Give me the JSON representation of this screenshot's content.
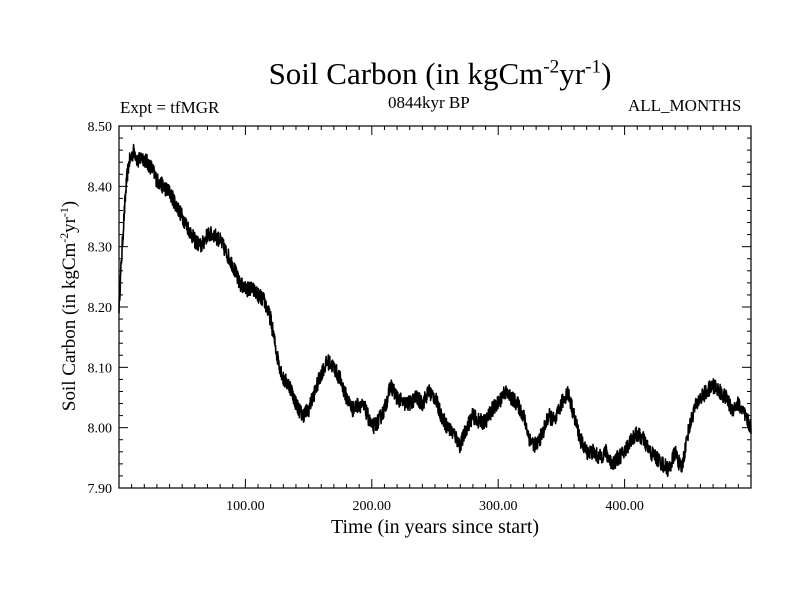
{
  "chart_data": {
    "type": "line",
    "title": {
      "base": "Soil Carbon (in kgCm",
      "sup1": "-2",
      "mid": "yr",
      "sup2": "-1",
      "end": ")"
    },
    "subtitle_left": "Expt = tfMGR",
    "subtitle_center": "0844kyr BP",
    "subtitle_right": "ALL_MONTHS",
    "xlabel": "Time (in years since start)",
    "ylabel": {
      "base": "Soil Carbon (in kgCm",
      "sup1": "-2",
      "mid": "yr",
      "sup2": "-1",
      "end": ")"
    },
    "xlim": [
      0,
      500
    ],
    "ylim": [
      7.9,
      8.5
    ],
    "x_ticks": [
      100,
      200,
      300,
      400
    ],
    "x_tick_labels": [
      "100.00",
      "200.00",
      "300.00",
      "400.00"
    ],
    "y_ticks": [
      7.9,
      8.0,
      8.1,
      8.2,
      8.3,
      8.4,
      8.5
    ],
    "y_tick_labels": [
      "7.90",
      "8.00",
      "8.10",
      "8.20",
      "8.30",
      "8.40",
      "8.50"
    ],
    "line_color": "#000000",
    "series": [
      {
        "name": "Soil Carbon",
        "x": [
          0,
          2,
          4,
          6,
          8,
          10,
          12,
          15,
          18,
          22,
          26,
          30,
          35,
          40,
          45,
          50,
          55,
          60,
          65,
          70,
          75,
          80,
          85,
          90,
          95,
          100,
          105,
          110,
          115,
          120,
          125,
          130,
          135,
          140,
          145,
          150,
          155,
          160,
          165,
          170,
          175,
          180,
          185,
          190,
          195,
          200,
          205,
          210,
          215,
          220,
          225,
          230,
          235,
          240,
          245,
          250,
          255,
          260,
          265,
          270,
          275,
          280,
          285,
          290,
          295,
          300,
          305,
          310,
          315,
          320,
          325,
          330,
          335,
          340,
          345,
          350,
          355,
          360,
          365,
          370,
          375,
          380,
          385,
          390,
          395,
          400,
          405,
          410,
          415,
          420,
          425,
          430,
          435,
          440,
          445,
          450,
          455,
          460,
          465,
          470,
          475,
          480,
          485,
          490,
          495,
          500
        ],
        "y": [
          8.2,
          8.28,
          8.35,
          8.41,
          8.44,
          8.45,
          8.46,
          8.44,
          8.45,
          8.44,
          8.43,
          8.41,
          8.4,
          8.39,
          8.37,
          8.35,
          8.33,
          8.31,
          8.3,
          8.32,
          8.32,
          8.31,
          8.29,
          8.27,
          8.24,
          8.23,
          8.23,
          8.22,
          8.21,
          8.18,
          8.12,
          8.08,
          8.07,
          8.04,
          8.02,
          8.03,
          8.06,
          8.09,
          8.11,
          8.1,
          8.08,
          8.05,
          8.03,
          8.04,
          8.03,
          8.0,
          8.01,
          8.03,
          8.07,
          8.05,
          8.04,
          8.04,
          8.05,
          8.04,
          8.06,
          8.05,
          8.02,
          8.0,
          7.99,
          7.97,
          8.0,
          8.02,
          8.01,
          8.01,
          8.03,
          8.04,
          8.06,
          8.05,
          8.04,
          8.02,
          7.98,
          7.97,
          7.99,
          8.02,
          8.01,
          8.04,
          8.06,
          8.02,
          7.98,
          7.96,
          7.96,
          7.95,
          7.96,
          7.94,
          7.95,
          7.96,
          7.98,
          7.99,
          7.98,
          7.96,
          7.95,
          7.94,
          7.93,
          7.96,
          7.93,
          7.99,
          8.03,
          8.05,
          8.06,
          8.07,
          8.06,
          8.05,
          8.03,
          8.04,
          8.02,
          8.0
        ]
      }
    ]
  }
}
